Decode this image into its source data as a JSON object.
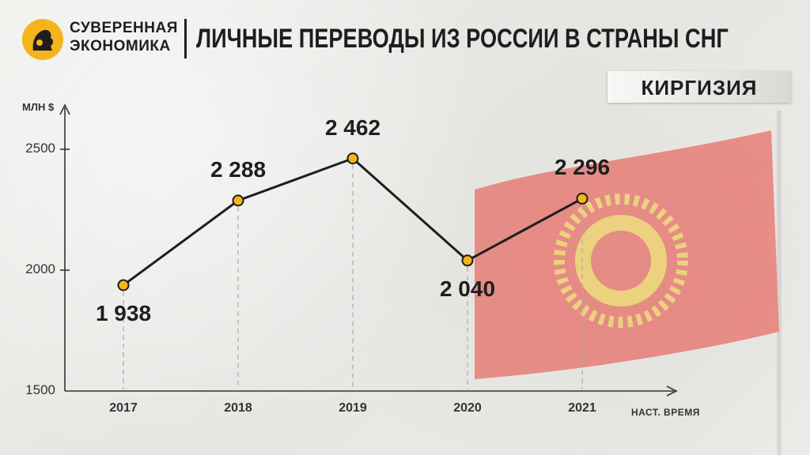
{
  "header": {
    "brand_line1": "СУВЕРЕННАЯ",
    "brand_line2": "ЭКОНОМИКА",
    "title": "ЛИЧНЫЕ ПЕРЕВОДЫ ИЗ РОССИИ В СТРАНЫ СНГ"
  },
  "country_label": "КИРГИЗИЯ",
  "colors": {
    "accent": "#f4b51c",
    "line": "#1e1e1e",
    "flag_red": "#e8453c"
  },
  "chart_data": {
    "type": "line",
    "title": "ЛИЧНЫЕ ПЕРЕВОДЫ ИЗ РОССИИ В СТРАНЫ СНГ",
    "subtitle": "КИРГИЗИЯ",
    "ylabel": "МЛН $",
    "xlabel": "",
    "x_note": "НАСТ. ВРЕМЯ",
    "categories": [
      "2017",
      "2018",
      "2019",
      "2020",
      "2021"
    ],
    "values": [
      1938,
      2288,
      2462,
      2040,
      2296
    ],
    "data_labels": [
      "1 938",
      "2 288",
      "2 462",
      "2 040",
      "2 296"
    ],
    "ylim": [
      1500,
      2650
    ],
    "yticks": [
      1500,
      2000,
      2500
    ],
    "grid": false,
    "legend": "none"
  }
}
